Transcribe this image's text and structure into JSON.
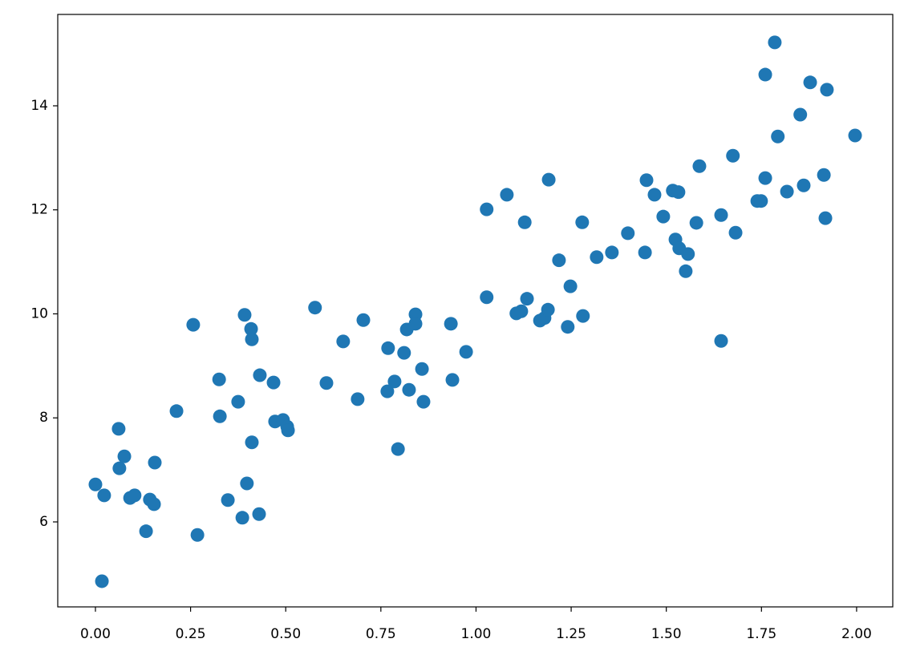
{
  "chart_data": {
    "type": "scatter",
    "color": "#1f77b4",
    "xlim": [
      -0.099,
      2.095
    ],
    "ylim": [
      4.366,
      15.757
    ],
    "xticks": [
      {
        "value": 0,
        "label": "0.00"
      },
      0.25,
      {
        "value": 0.5,
        "label": "0.50"
      },
      0.75,
      {
        "value": 1,
        "label": "1.00"
      },
      1.25,
      {
        "value": 1.5,
        "label": "1.50"
      },
      1.75,
      {
        "value": 2,
        "label": "2.00"
      }
    ],
    "yticks": [
      6,
      8,
      10,
      12,
      14
    ],
    "x": [
      0.0,
      0.023,
      0.017,
      0.061,
      0.063,
      0.076,
      0.091,
      0.103,
      0.133,
      0.143,
      0.154,
      0.156,
      0.213,
      0.257,
      0.268,
      0.325,
      0.327,
      0.348,
      0.375,
      0.386,
      0.392,
      0.398,
      0.409,
      0.411,
      0.411,
      0.43,
      0.432,
      0.468,
      0.472,
      0.493,
      0.504,
      0.506,
      0.577,
      0.607,
      0.651,
      0.689,
      0.704,
      0.767,
      0.769,
      0.786,
      0.795,
      0.811,
      0.818,
      0.824,
      0.841,
      0.841,
      0.858,
      0.862,
      0.934,
      0.938,
      0.974,
      1.028,
      1.028,
      1.081,
      1.106,
      1.119,
      1.128,
      1.134,
      1.168,
      1.18,
      1.189,
      1.191,
      1.218,
      1.241,
      1.248,
      1.279,
      1.281,
      1.317,
      1.357,
      1.399,
      1.444,
      1.448,
      1.469,
      1.492,
      1.517,
      1.524,
      1.532,
      1.534,
      1.551,
      1.557,
      1.579,
      1.587,
      1.644,
      1.644,
      1.675,
      1.682,
      1.739,
      1.749,
      1.76,
      1.76,
      1.785,
      1.793,
      1.817,
      1.852,
      1.861,
      1.878,
      1.914,
      1.918,
      1.922,
      1.996
    ],
    "y": [
      6.72,
      6.51,
      4.86,
      7.79,
      7.03,
      7.26,
      6.46,
      6.51,
      5.82,
      6.43,
      6.34,
      7.14,
      8.13,
      9.79,
      5.75,
      8.74,
      8.03,
      6.42,
      8.31,
      6.08,
      9.98,
      6.74,
      9.71,
      9.51,
      7.53,
      6.15,
      8.82,
      8.68,
      7.93,
      7.96,
      7.83,
      7.76,
      10.12,
      8.67,
      9.47,
      8.36,
      9.88,
      8.51,
      9.34,
      8.7,
      7.4,
      9.25,
      9.7,
      8.54,
      9.99,
      9.81,
      8.94,
      8.31,
      9.81,
      8.73,
      9.27,
      12.01,
      10.32,
      12.29,
      10.01,
      10.05,
      11.76,
      10.29,
      9.87,
      9.92,
      10.08,
      12.58,
      11.03,
      9.75,
      10.53,
      11.76,
      9.96,
      11.09,
      11.18,
      11.55,
      11.18,
      12.57,
      12.29,
      11.87,
      12.37,
      11.43,
      12.34,
      11.26,
      10.82,
      11.15,
      11.75,
      12.84,
      11.9,
      9.48,
      13.04,
      11.56,
      12.17,
      12.17,
      14.6,
      12.61,
      15.22,
      13.41,
      12.35,
      13.83,
      12.47,
      14.45,
      12.67,
      11.84,
      14.31,
      13.43
    ]
  }
}
